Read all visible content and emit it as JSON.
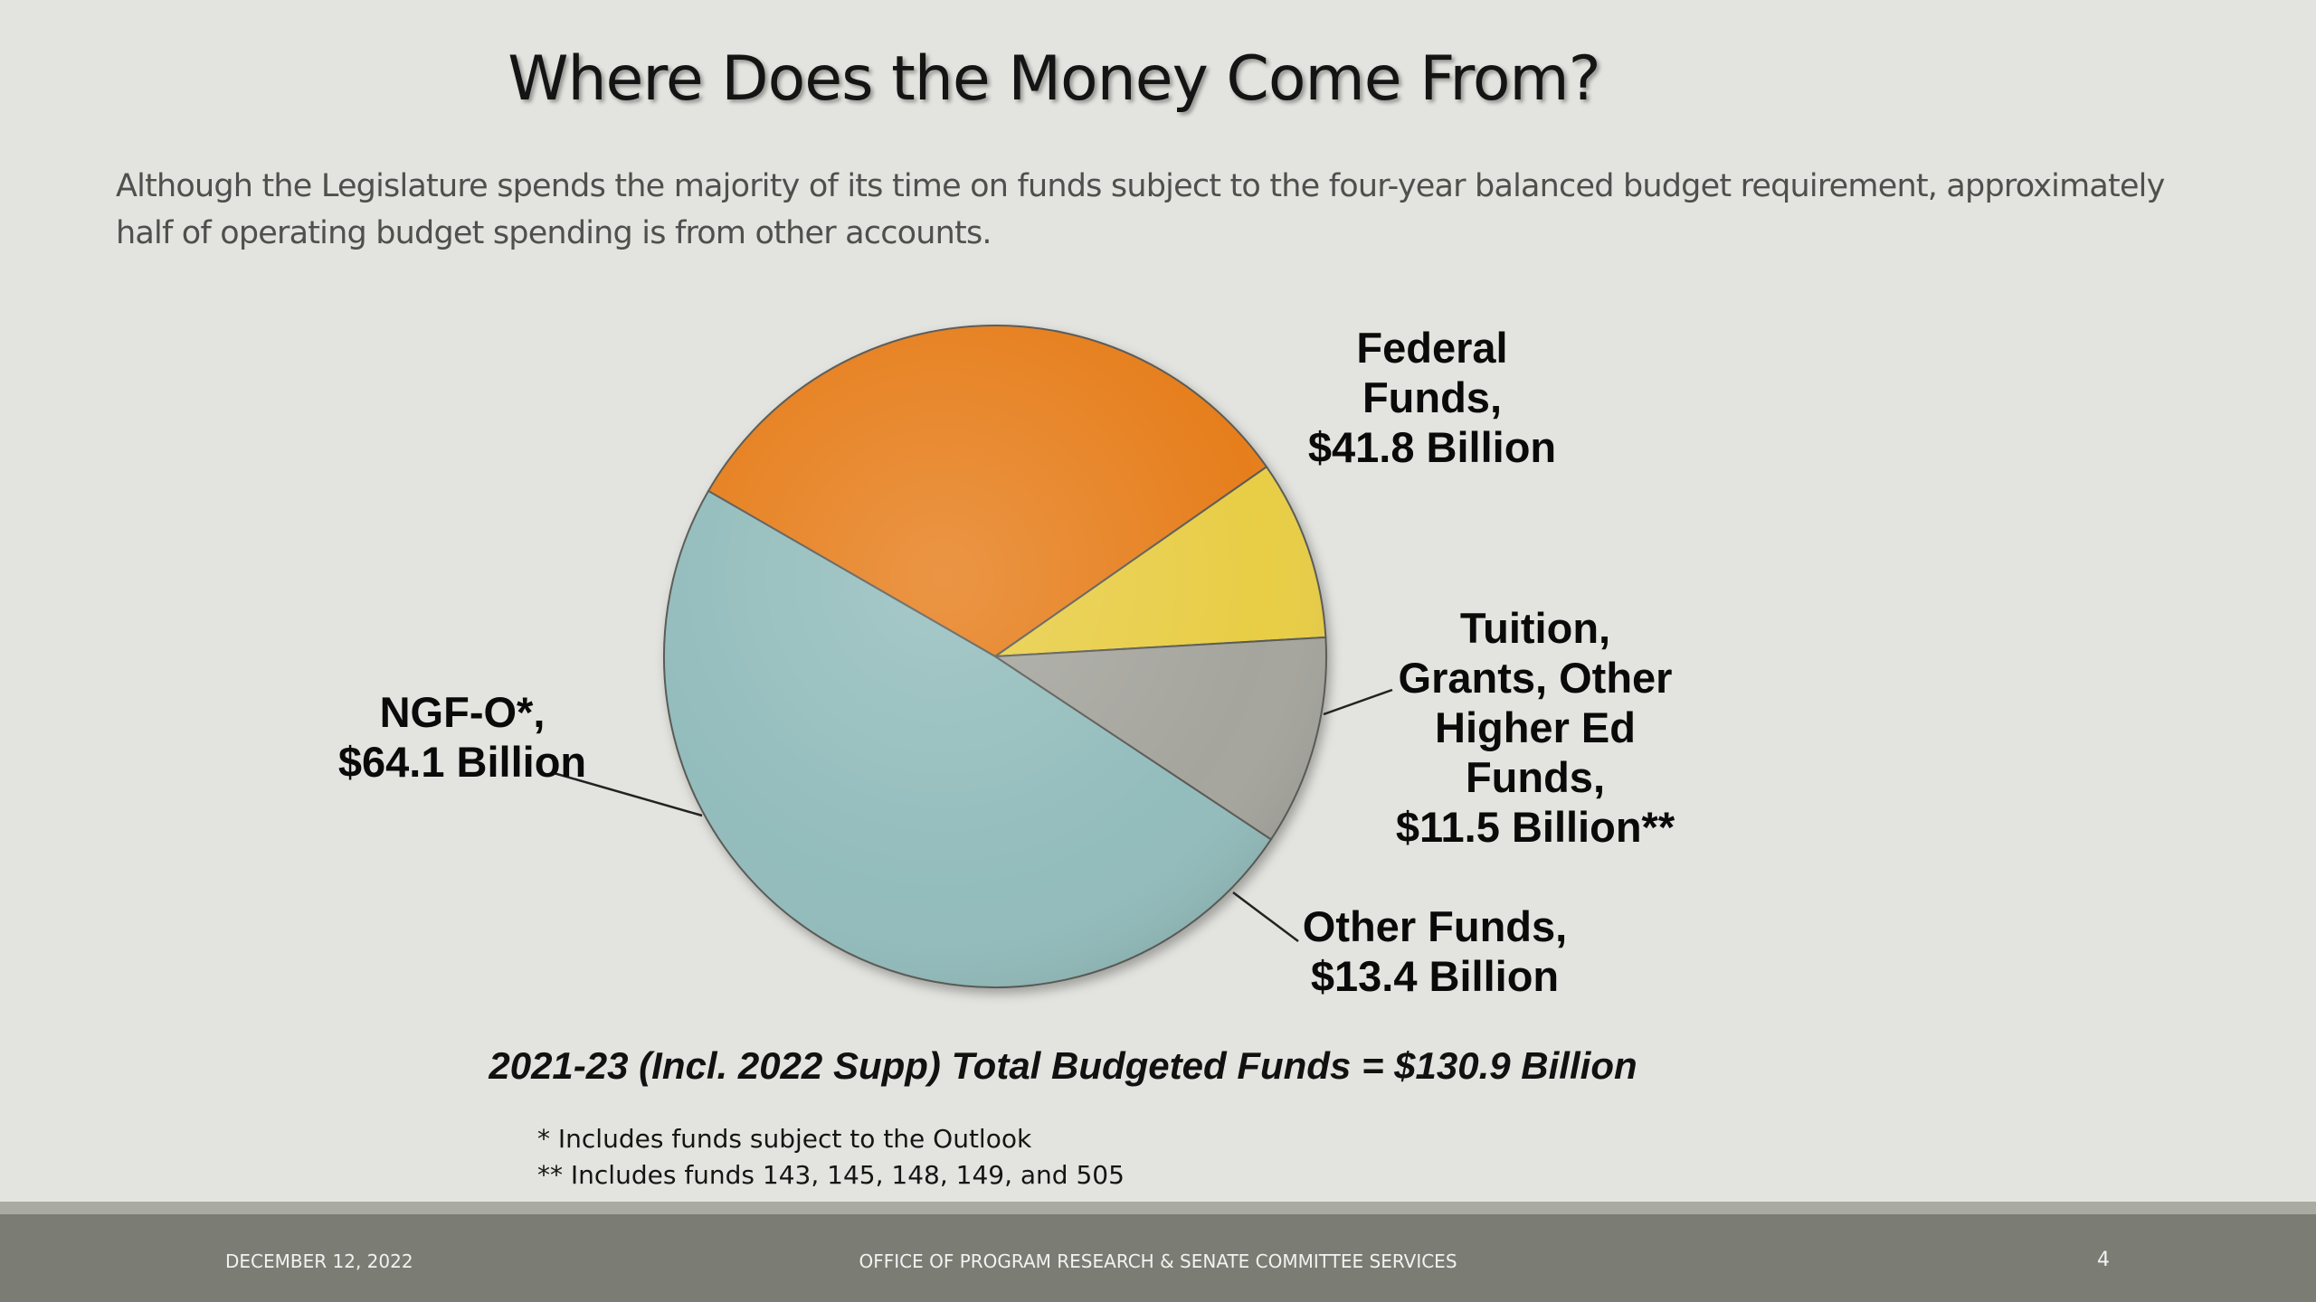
{
  "slide": {
    "title": "Where Does the Money Come From?",
    "subtitle": "Although the Legislature spends the majority of its time on funds subject to the four-year balanced budget requirement, approximately half of operating budget spending is from other accounts.",
    "total": "2021-23 (Incl. 2022 Supp) Total Budgeted Funds = $130.9 Billion",
    "footnotes": [
      "* Includes funds subject to the Outlook",
      "** Includes funds 143, 145, 148, 149, and 505"
    ]
  },
  "footer": {
    "date": "DECEMBER 12, 2022",
    "org": "OFFICE OF PROGRAM RESEARCH & SENATE COMMITTEE SERVICES",
    "page": "4"
  },
  "chart_data": {
    "type": "pie",
    "title": "",
    "total": 130.9,
    "units": "Billion",
    "slices": [
      {
        "name": "Federal Funds",
        "value": 41.8,
        "color": "#e67e1c",
        "label_lines": [
          "Federal",
          "Funds,",
          "$41.8 Billion"
        ]
      },
      {
        "name": "Tuition, Grants, Other Higher Ed Funds",
        "value": 11.5,
        "color": "#e8cd45",
        "label_lines": [
          "Tuition,",
          "Grants, Other",
          "Higher Ed",
          "Funds,",
          "$11.5 Billion**"
        ]
      },
      {
        "name": "Other Funds",
        "value": 13.4,
        "color": "#a5a59e",
        "label_lines": [
          "Other Funds,",
          "$13.4 Billion"
        ]
      },
      {
        "name": "NGF-O*",
        "value": 64.1,
        "color": "#93bcbc",
        "label_lines": [
          "NGF-O*,",
          "$64.1 Billion"
        ]
      }
    ]
  }
}
